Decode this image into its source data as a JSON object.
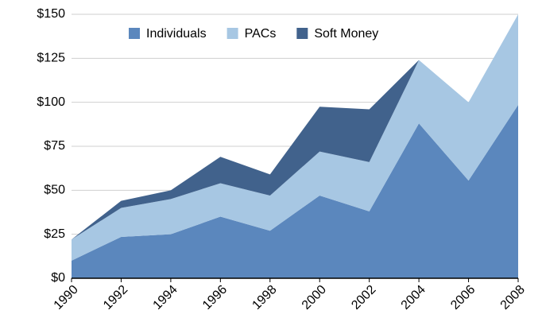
{
  "chart_data": {
    "type": "stacked_area",
    "categories": [
      "1990",
      "1992",
      "1994",
      "1996",
      "1998",
      "2000",
      "2002",
      "2004",
      "2006",
      "2008"
    ],
    "series": [
      {
        "name": "Individuals",
        "color": "#5b87bd",
        "values": [
          10,
          23.5,
          25,
          35,
          27,
          47,
          38,
          88,
          55.5,
          98.5
        ]
      },
      {
        "name": "PACs",
        "color": "#a7c7e3",
        "values": [
          12,
          16.5,
          20,
          19,
          20,
          25,
          28,
          36,
          44.5,
          51.5
        ]
      },
      {
        "name": "Soft Money",
        "color": "#41628c",
        "values": [
          0,
          4,
          5,
          15,
          12,
          25.5,
          30,
          0,
          0,
          0
        ]
      }
    ],
    "ylim": [
      0,
      150
    ],
    "yticks": [
      {
        "value": 0,
        "label": "$0"
      },
      {
        "value": 25,
        "label": "$25"
      },
      {
        "value": 50,
        "label": "$50"
      },
      {
        "value": 75,
        "label": "$75"
      },
      {
        "value": 100,
        "label": "$100"
      },
      {
        "value": 125,
        "label": "$125"
      },
      {
        "value": 150,
        "label": "$150"
      }
    ],
    "grid": true,
    "legend": "top"
  }
}
